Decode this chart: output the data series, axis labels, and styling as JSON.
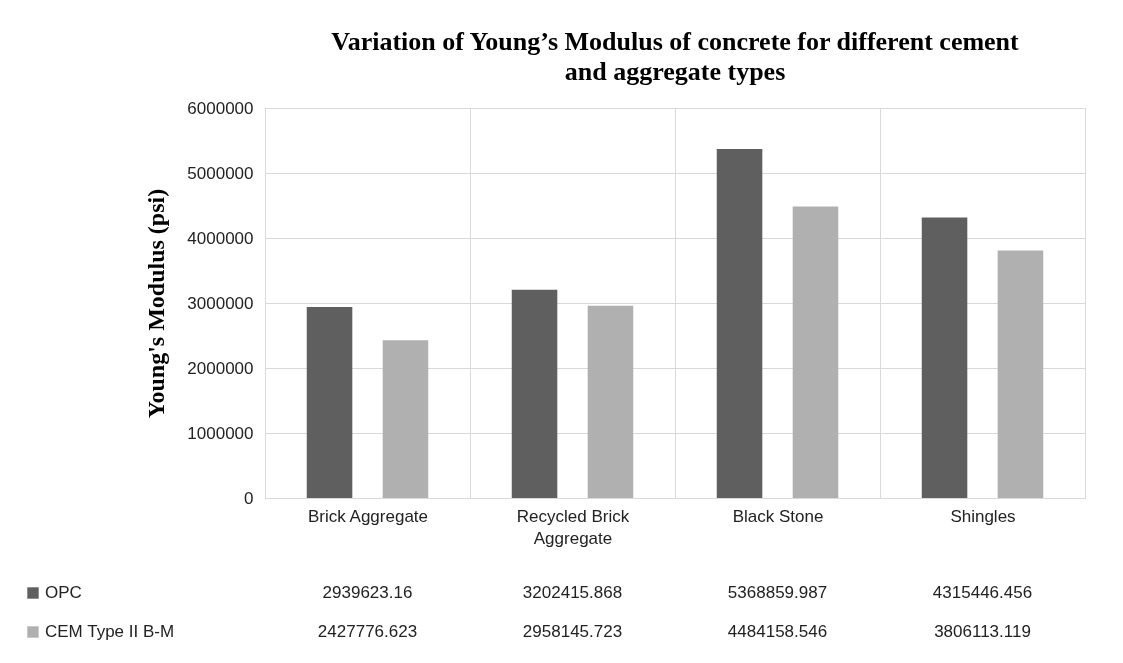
{
  "chart_data": {
    "type": "bar",
    "title": "Variation of Young’s Modulus of concrete for different cement and aggregate types",
    "ylabel": "Young's Modulus (psi)",
    "categories": [
      "Brick Aggregate",
      "Recycled Brick Aggregate",
      "Black Stone",
      "Shingles"
    ],
    "series": [
      {
        "name": "OPC",
        "color": "#5f5f5f",
        "values": [
          2939623.16,
          3202415.868,
          5368859.987,
          4315446.456
        ]
      },
      {
        "name": "CEM Type II B-M",
        "color": "#b0b0b0",
        "values": [
          2427776.623,
          2958145.723,
          4484158.546,
          3806113.119
        ]
      }
    ],
    "ylim": [
      0,
      6000000
    ],
    "yticks": [
      0,
      1000000,
      2000000,
      3000000,
      4000000,
      5000000,
      6000000
    ],
    "grid": true,
    "legend": "bottom",
    "data_labels": true
  }
}
